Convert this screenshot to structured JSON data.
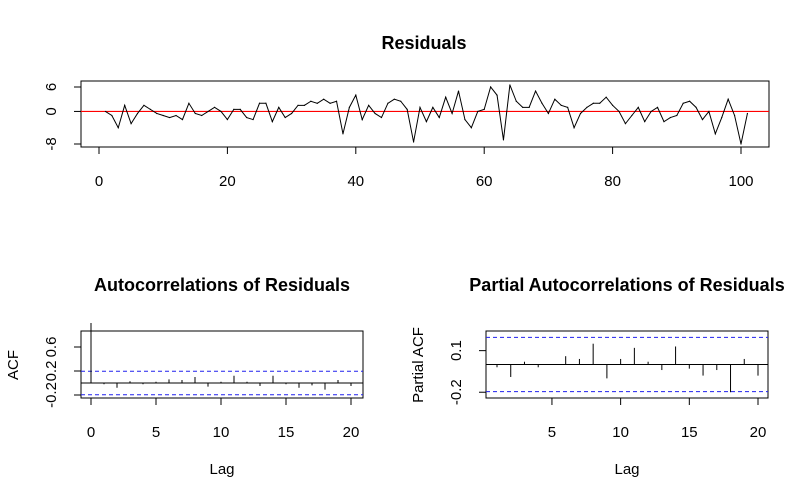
{
  "charts": [
    {
      "type": "line",
      "title": "Residuals",
      "xlabel": "",
      "ylabel": "",
      "xlim": [
        0,
        100
      ],
      "ylim": [
        -8,
        6
      ],
      "xticks": [
        0,
        20,
        40,
        60,
        80,
        100
      ],
      "yticks": [
        -8,
        0,
        6
      ],
      "reference_line": {
        "y": 0,
        "color": "#ff0000"
      },
      "series_color": "#000000",
      "x_start": 1,
      "values": [
        0,
        -1,
        -4,
        1.5,
        -3,
        -0.5,
        1.5,
        0.5,
        -0.5,
        -1,
        -1.5,
        -1,
        -2,
        2,
        -0.5,
        -1,
        0,
        1,
        0,
        -2,
        0.5,
        0.5,
        -1.5,
        -2,
        2,
        2,
        -2.5,
        1,
        -1.5,
        -0.5,
        1.5,
        1.5,
        2.5,
        2,
        3,
        2,
        2.5,
        -5.5,
        1,
        4,
        -2,
        1.5,
        -0.5,
        -1.5,
        2,
        3,
        2.5,
        0.5,
        -7.5,
        1,
        -2.5,
        1,
        -1.5,
        3.5,
        -0.5,
        5,
        -2,
        -4,
        0,
        0.5,
        6,
        4,
        -7,
        6.5,
        2.5,
        1,
        1,
        5,
        2,
        -0.5,
        3,
        1.5,
        1,
        -4,
        -0.5,
        1,
        2,
        2,
        3.5,
        1.5,
        0,
        -3,
        -1,
        1,
        -2.5,
        0,
        1,
        -2.5,
        -1.5,
        -1,
        2,
        2.5,
        1,
        -2,
        0,
        -5.5,
        -1.5,
        3,
        -1,
        -8,
        -0.5
      ]
    },
    {
      "type": "bar",
      "title": "Autocorrelations of Residuals",
      "xlabel": "Lag",
      "ylabel": "ACF",
      "xlim": [
        0,
        20
      ],
      "ylim": [
        -0.2,
        0.8
      ],
      "xticks": [
        0,
        5,
        10,
        15,
        20
      ],
      "yticks": [
        -0.2,
        0.2,
        0.6
      ],
      "confidence_band": 0.196,
      "lags": [
        0,
        1,
        2,
        3,
        4,
        5,
        6,
        7,
        8,
        9,
        10,
        11,
        12,
        13,
        14,
        15,
        16,
        17,
        18,
        19,
        20
      ],
      "values": [
        1.0,
        -0.02,
        -0.08,
        0.03,
        -0.02,
        0.02,
        0.06,
        0.05,
        0.1,
        -0.06,
        0.02,
        0.12,
        0.02,
        -0.05,
        0.12,
        -0.02,
        -0.08,
        -0.04,
        -0.11,
        0.05,
        -0.05
      ]
    },
    {
      "type": "bar",
      "title": "Partial Autocorrelations of Residuals",
      "xlabel": "Lag",
      "ylabel": "Partial ACF",
      "xlim": [
        1,
        20
      ],
      "ylim": [
        -0.22,
        0.22
      ],
      "xticks": [
        5,
        10,
        15,
        20
      ],
      "yticks": [
        -0.2,
        0.1
      ],
      "confidence_band": 0.196,
      "lags": [
        1,
        2,
        3,
        4,
        5,
        6,
        7,
        8,
        9,
        10,
        11,
        12,
        13,
        14,
        15,
        16,
        17,
        18,
        19,
        20
      ],
      "values": [
        -0.02,
        -0.09,
        0.02,
        -0.02,
        0.0,
        0.06,
        0.04,
        0.15,
        -0.1,
        0.04,
        0.12,
        0.02,
        -0.04,
        0.13,
        -0.03,
        -0.08,
        -0.04,
        -0.2,
        0.04,
        -0.08
      ]
    }
  ]
}
